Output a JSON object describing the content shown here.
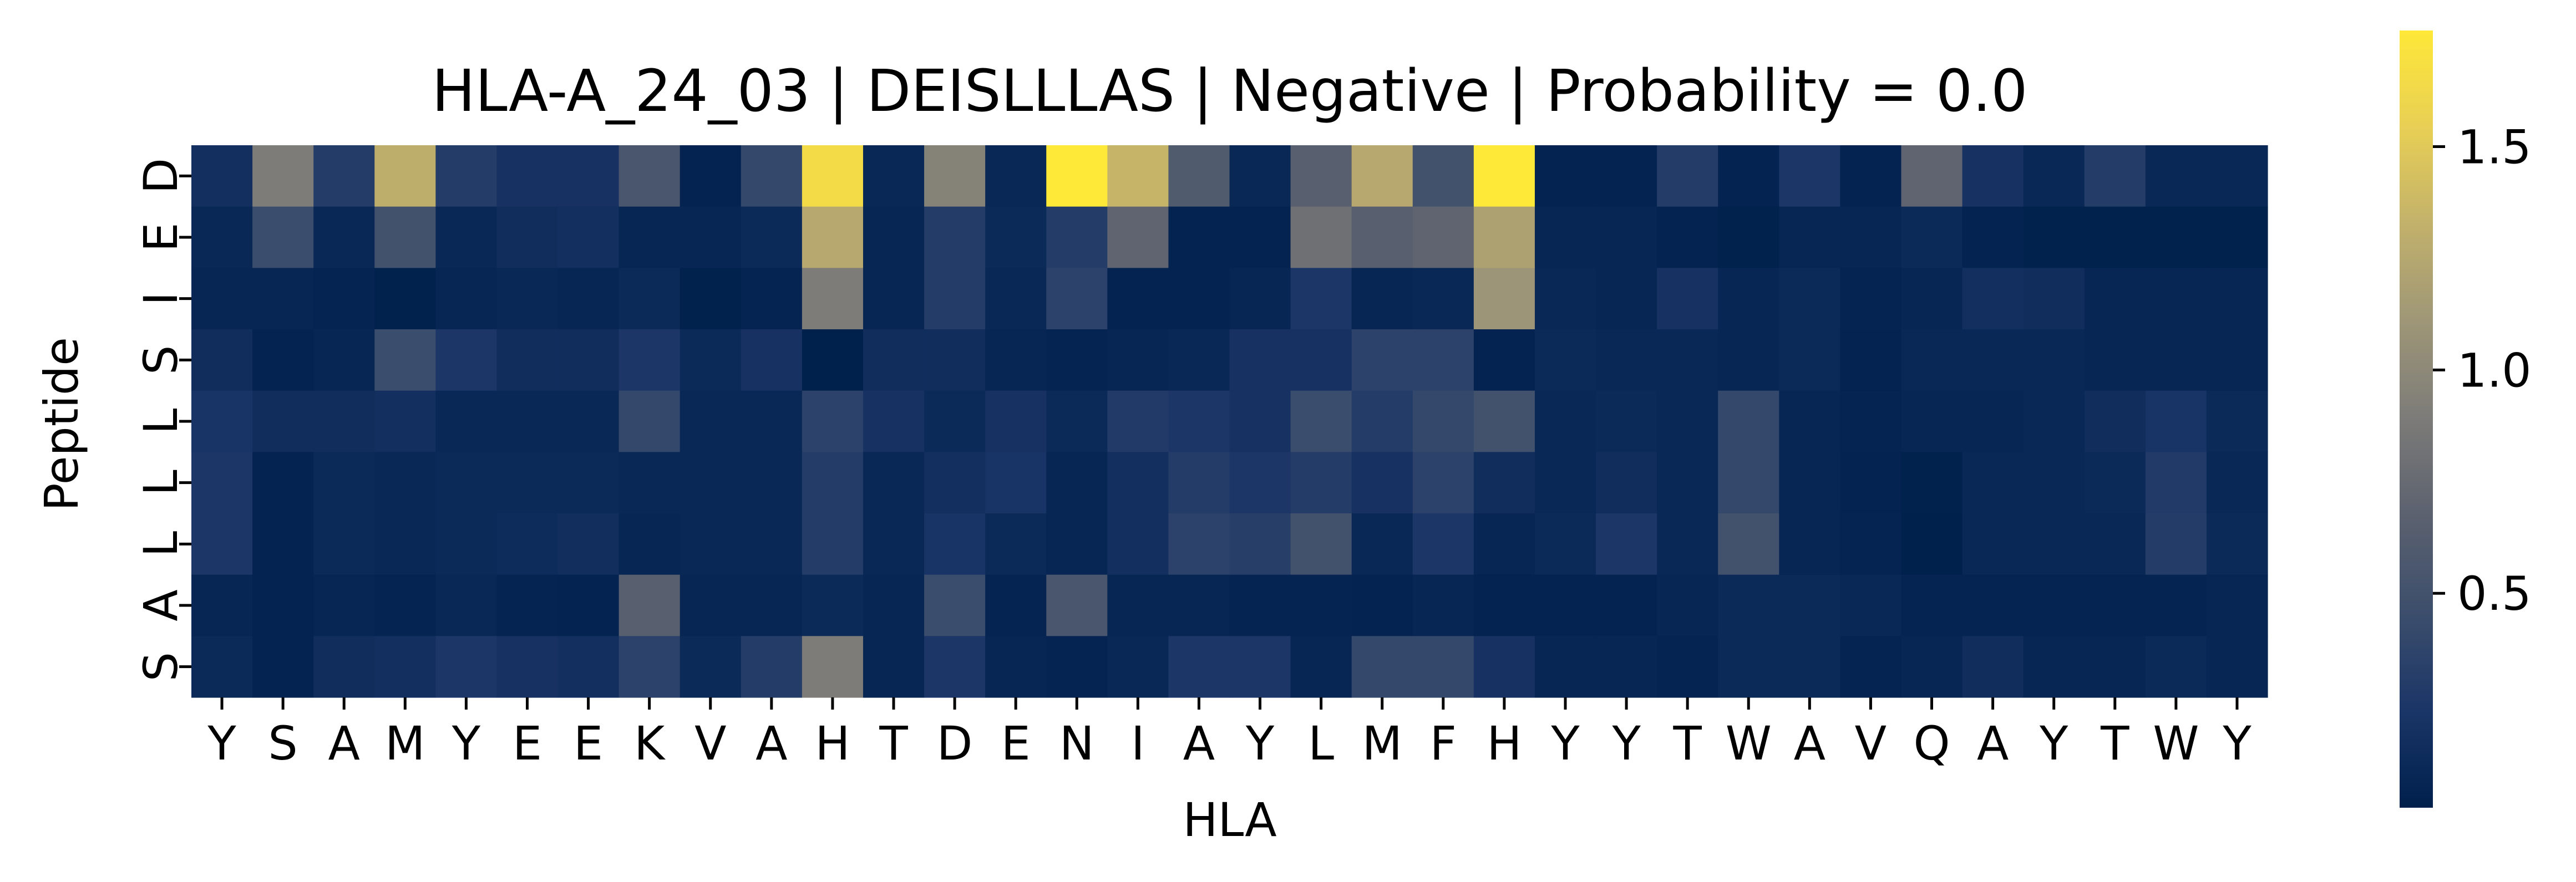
{
  "chart_data": {
    "type": "heatmap",
    "title": "HLA-A_24_03 | DEISLLLAS | Negative | Probability = 0.0",
    "xlabel": "HLA",
    "ylabel": "Peptide",
    "x_labels": [
      "Y",
      "S",
      "A",
      "M",
      "Y",
      "E",
      "E",
      "K",
      "V",
      "A",
      "H",
      "T",
      "D",
      "E",
      "N",
      "I",
      "A",
      "Y",
      "L",
      "M",
      "F",
      "H",
      "Y",
      "Y",
      "T",
      "W",
      "A",
      "V",
      "Q",
      "A",
      "Y",
      "T",
      "W",
      "Y"
    ],
    "y_labels": [
      "D",
      "E",
      "I",
      "S",
      "L",
      "L",
      "L",
      "A",
      "S"
    ],
    "colormap": "cividis",
    "colorbar": {
      "range": [
        0.02,
        1.76
      ],
      "ticks": [
        0.5,
        1.0,
        1.5
      ],
      "tick_labels": [
        "0.5",
        "1.0",
        "1.5"
      ]
    },
    "values": [
      [
        0.18,
        0.9,
        0.3,
        1.3,
        0.3,
        0.2,
        0.2,
        0.55,
        0.05,
        0.4,
        1.65,
        0.1,
        0.95,
        0.1,
        1.76,
        1.35,
        0.6,
        0.1,
        0.65,
        1.25,
        0.5,
        1.76,
        0.05,
        0.05,
        0.3,
        0.05,
        0.25,
        0.05,
        0.7,
        0.2,
        0.1,
        0.3,
        0.1,
        0.1
      ],
      [
        0.1,
        0.45,
        0.1,
        0.5,
        0.1,
        0.15,
        0.18,
        0.08,
        0.08,
        0.12,
        1.25,
        0.08,
        0.3,
        0.12,
        0.3,
        0.7,
        0.05,
        0.05,
        0.8,
        0.65,
        0.7,
        1.2,
        0.08,
        0.08,
        0.05,
        0.04,
        0.08,
        0.08,
        0.12,
        0.05,
        0.04,
        0.04,
        0.04,
        0.04
      ],
      [
        0.08,
        0.08,
        0.06,
        0.04,
        0.08,
        0.1,
        0.08,
        0.12,
        0.04,
        0.06,
        0.9,
        0.08,
        0.3,
        0.1,
        0.35,
        0.05,
        0.05,
        0.08,
        0.25,
        0.08,
        0.1,
        1.1,
        0.1,
        0.08,
        0.2,
        0.08,
        0.12,
        0.06,
        0.08,
        0.18,
        0.15,
        0.08,
        0.08,
        0.08
      ],
      [
        0.15,
        0.05,
        0.08,
        0.45,
        0.25,
        0.15,
        0.15,
        0.25,
        0.12,
        0.2,
        0.03,
        0.15,
        0.15,
        0.08,
        0.06,
        0.08,
        0.1,
        0.2,
        0.2,
        0.35,
        0.35,
        0.05,
        0.12,
        0.1,
        0.1,
        0.08,
        0.12,
        0.05,
        0.1,
        0.1,
        0.1,
        0.08,
        0.08,
        0.08
      ],
      [
        0.22,
        0.15,
        0.15,
        0.18,
        0.1,
        0.1,
        0.1,
        0.4,
        0.1,
        0.1,
        0.35,
        0.2,
        0.12,
        0.2,
        0.12,
        0.28,
        0.25,
        0.2,
        0.45,
        0.3,
        0.4,
        0.5,
        0.1,
        0.12,
        0.1,
        0.4,
        0.08,
        0.06,
        0.08,
        0.08,
        0.1,
        0.15,
        0.22,
        0.12
      ],
      [
        0.25,
        0.05,
        0.12,
        0.1,
        0.12,
        0.12,
        0.12,
        0.1,
        0.1,
        0.1,
        0.3,
        0.1,
        0.18,
        0.22,
        0.08,
        0.18,
        0.3,
        0.25,
        0.3,
        0.2,
        0.35,
        0.15,
        0.1,
        0.15,
        0.1,
        0.4,
        0.08,
        0.05,
        0.04,
        0.1,
        0.1,
        0.12,
        0.28,
        0.1
      ],
      [
        0.25,
        0.05,
        0.12,
        0.1,
        0.12,
        0.14,
        0.16,
        0.08,
        0.1,
        0.1,
        0.3,
        0.1,
        0.22,
        0.12,
        0.08,
        0.18,
        0.35,
        0.32,
        0.5,
        0.1,
        0.25,
        0.08,
        0.12,
        0.25,
        0.1,
        0.5,
        0.08,
        0.06,
        0.03,
        0.1,
        0.1,
        0.1,
        0.3,
        0.12
      ],
      [
        0.08,
        0.05,
        0.08,
        0.06,
        0.1,
        0.06,
        0.05,
        0.65,
        0.08,
        0.08,
        0.12,
        0.08,
        0.45,
        0.06,
        0.55,
        0.08,
        0.08,
        0.06,
        0.06,
        0.05,
        0.08,
        0.05,
        0.05,
        0.05,
        0.08,
        0.12,
        0.12,
        0.1,
        0.06,
        0.06,
        0.06,
        0.06,
        0.06,
        0.08
      ],
      [
        0.12,
        0.05,
        0.15,
        0.18,
        0.25,
        0.2,
        0.18,
        0.35,
        0.12,
        0.3,
        0.9,
        0.08,
        0.25,
        0.08,
        0.06,
        0.1,
        0.25,
        0.25,
        0.08,
        0.4,
        0.4,
        0.2,
        0.08,
        0.08,
        0.06,
        0.12,
        0.12,
        0.06,
        0.08,
        0.15,
        0.08,
        0.08,
        0.12,
        0.08
      ]
    ]
  }
}
